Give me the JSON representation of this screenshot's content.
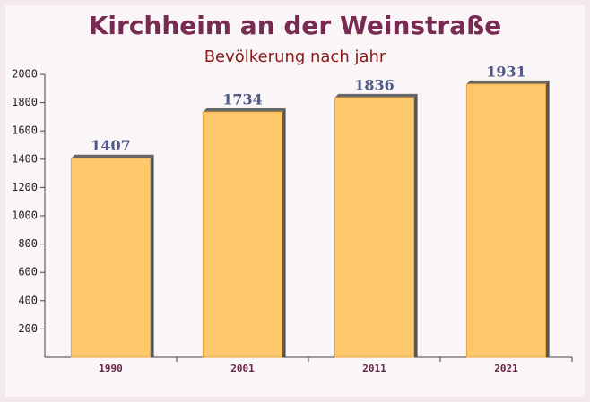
{
  "chart_data": {
    "type": "bar",
    "title": "Kirchheim an der Weinstraße",
    "subtitle": "Bevölkerung nach jahr",
    "categories": [
      "1990",
      "2001",
      "2011",
      "2021"
    ],
    "values": [
      1407,
      1734,
      1836,
      1931
    ],
    "color": "#fec96a",
    "ylim": [
      0,
      2000
    ],
    "yticks": [
      200,
      400,
      600,
      800,
      1000,
      1200,
      1400,
      1600,
      1800,
      2000
    ]
  }
}
